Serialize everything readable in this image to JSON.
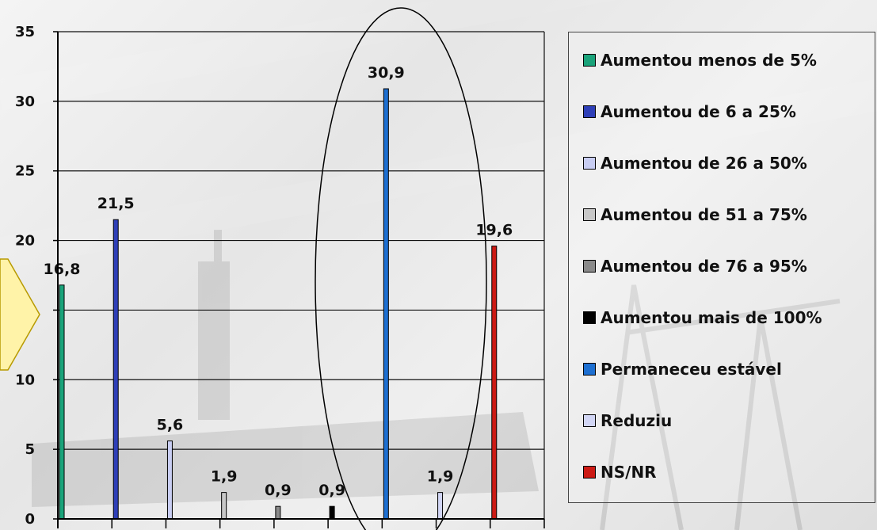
{
  "chart_data": {
    "type": "bar",
    "categories": [
      "Aumentou menos de 5%",
      "Aumentou de 6 a 25%",
      "Aumentou de 26 a 50%",
      "Aumentou de 51 a 75%",
      "Aumentou de 76 a 95%",
      "Aumentou mais de 100%",
      "Permaneceu estável",
      "Reduziu",
      "NS/NR"
    ],
    "values": [
      16.8,
      21.5,
      5.6,
      1.9,
      0.9,
      0.9,
      30.9,
      1.9,
      19.6
    ],
    "value_labels": [
      "16,8",
      "21,5",
      "5,6",
      "1,9",
      "0,9",
      "0,9",
      "30,9",
      "1,9",
      "19,6"
    ],
    "colors": [
      "#1aa37a",
      "#2e3fb8",
      "#c8cdf2",
      "#c8c8c8",
      "#8a8a8a",
      "#000000",
      "#1d6fd1",
      "#d2d6f5",
      "#cc1a14"
    ],
    "ylim": [
      0,
      35
    ],
    "yticks": [
      0,
      5,
      10,
      15,
      20,
      25,
      30,
      35
    ],
    "grid": true,
    "legend_position": "right",
    "highlight": "Permaneceu estável"
  }
}
